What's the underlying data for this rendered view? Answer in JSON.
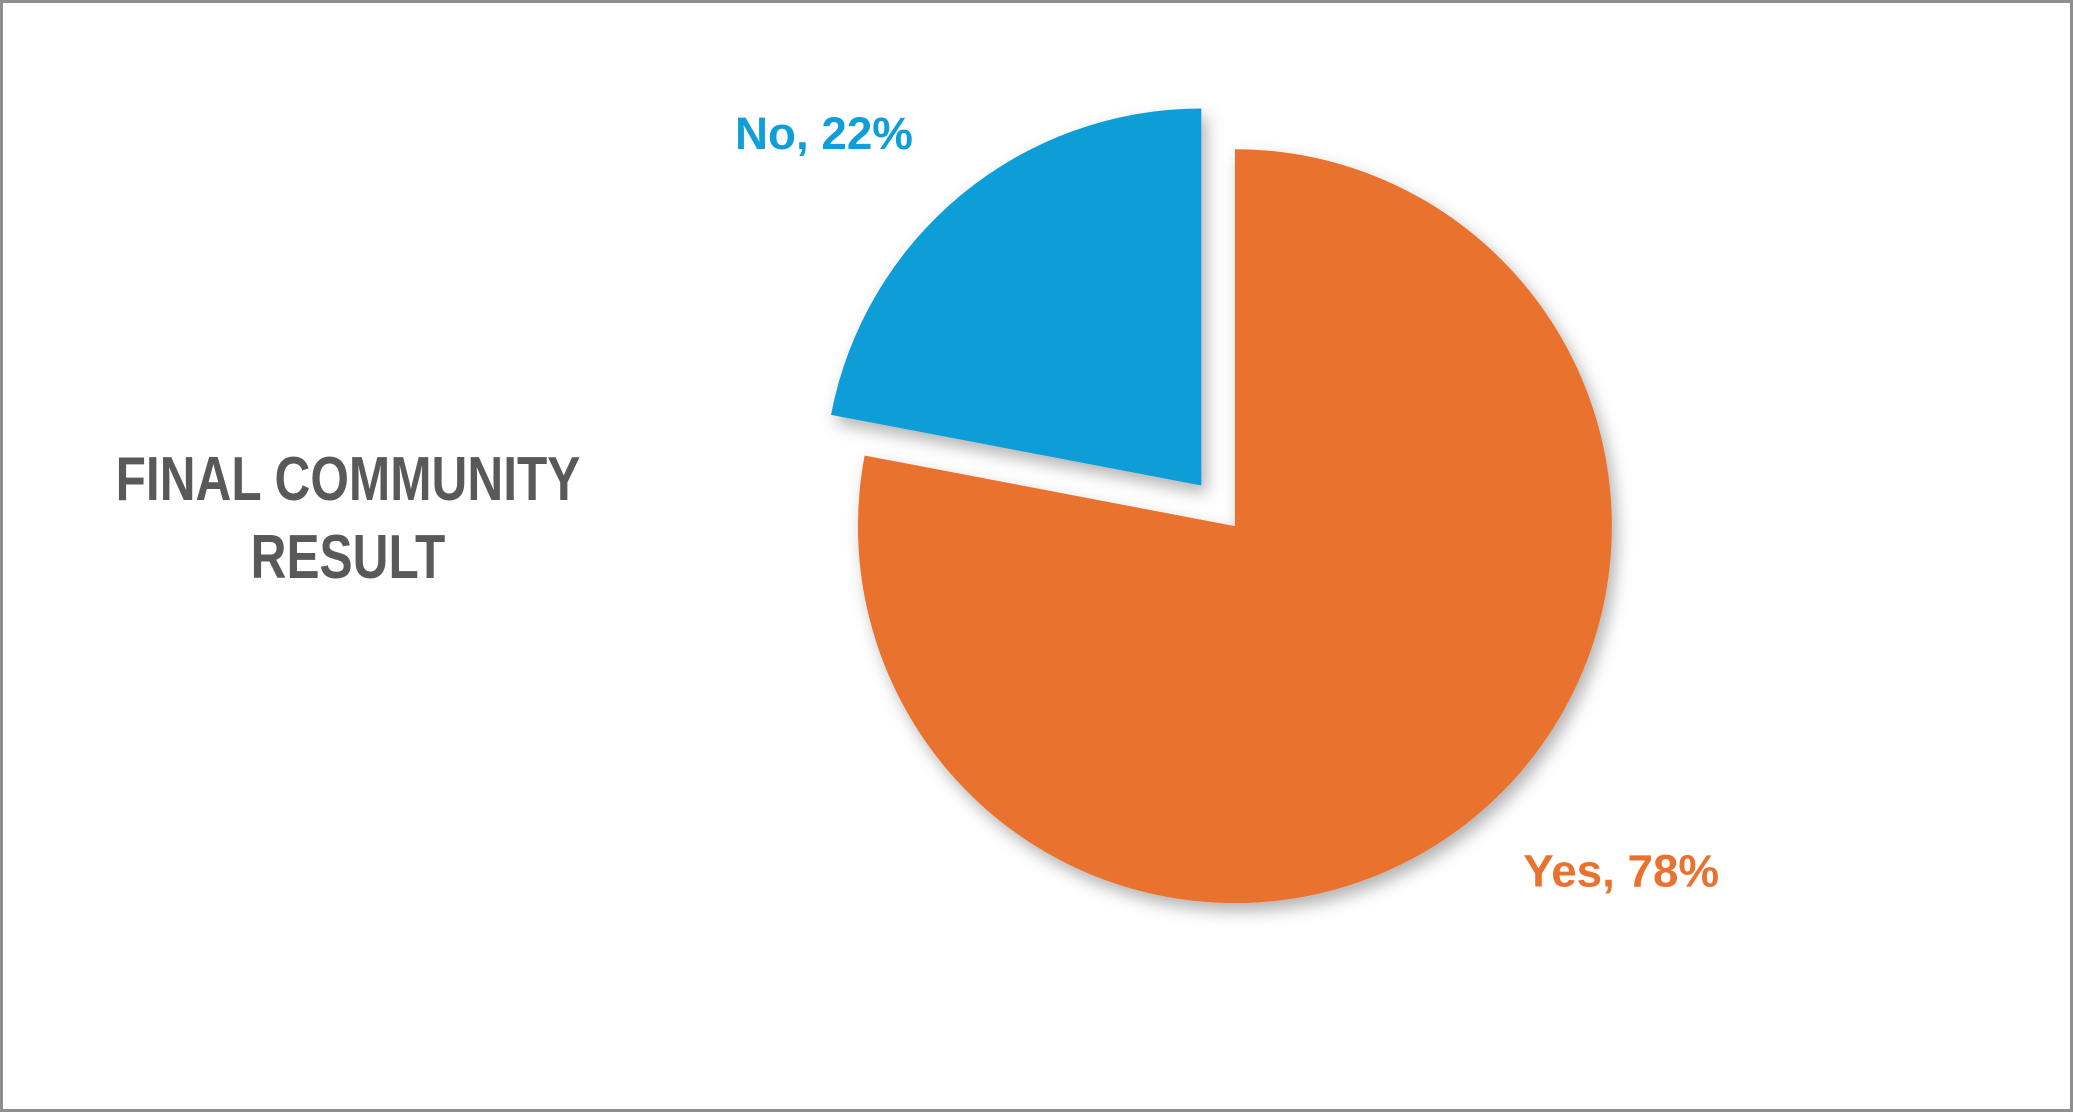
{
  "frame": {
    "background": "#FFFFFF",
    "border_color": "#8E8E8E"
  },
  "chart_data": {
    "type": "pie",
    "title": "FINAL COMMUNITY RESULT",
    "title_color": "#595959",
    "legend": "none",
    "grid": "off",
    "direction": "clockwise",
    "start_angle_deg": 0,
    "label_style": "category, percent",
    "categories": [
      "Yes",
      "No"
    ],
    "values": [
      78,
      22
    ],
    "slices": [
      {
        "label": "Yes",
        "value": 78,
        "percent_label": "Yes, 78%",
        "color": "#E8722F",
        "label_color": "#E8722F",
        "exploded": false
      },
      {
        "label": "No",
        "value": 22,
        "percent_label": "No, 22%",
        "color": "#0F9ED8",
        "label_color": "#0F9ED8",
        "exploded": true
      }
    ]
  }
}
